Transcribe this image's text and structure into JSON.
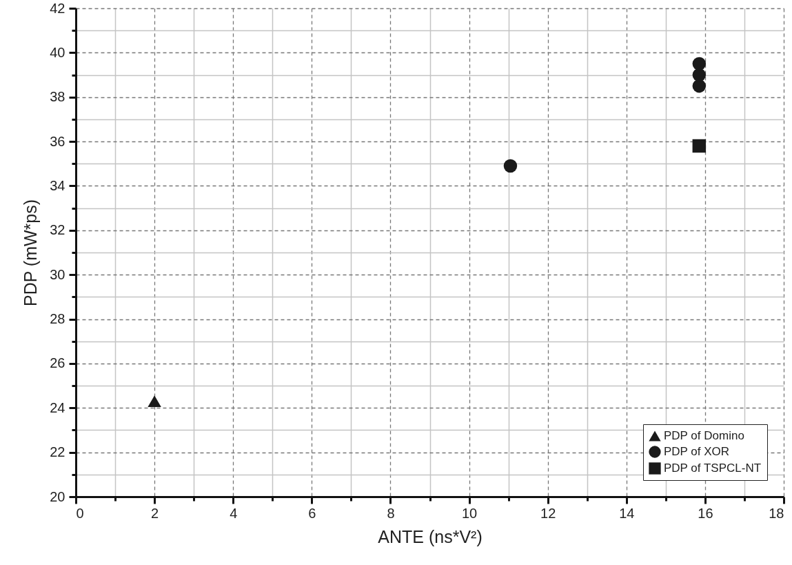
{
  "chart_data": {
    "type": "scatter",
    "xlabel": "ANTE (ns*V²)",
    "ylabel": "PDP (mW*ps)",
    "xlim": [
      0,
      18
    ],
    "ylim": [
      20,
      42
    ],
    "xticks": [
      0,
      {
        "value": 1,
        "label": null
      },
      2,
      {
        "value": 3,
        "label": null
      },
      4,
      {
        "value": 5,
        "label": null
      },
      6,
      {
        "value": 7,
        "label": null
      },
      8,
      {
        "value": 9,
        "label": null
      },
      10,
      {
        "value": 11,
        "label": null
      },
      12,
      {
        "value": 13,
        "label": null
      },
      14,
      {
        "value": 15,
        "label": null
      },
      16,
      {
        "value": 17,
        "label": null
      },
      18
    ],
    "yticks": [
      20,
      {
        "value": 21,
        "label": null
      },
      22,
      {
        "value": 23,
        "label": null
      },
      24,
      {
        "value": 25,
        "label": null
      },
      26,
      {
        "value": 27,
        "label": null
      },
      28,
      {
        "value": 29,
        "label": null
      },
      30,
      {
        "value": 31,
        "label": null
      },
      32,
      {
        "value": 33,
        "label": null
      },
      34,
      {
        "value": 35,
        "label": null
      },
      36,
      {
        "value": 37,
        "label": null
      },
      38,
      {
        "value": 39,
        "label": null
      },
      40,
      {
        "value": 41,
        "label": null
      },
      42
    ],
    "grid": true,
    "legend": "bottom right",
    "series": [
      {
        "name": "PDP of Domino",
        "color": "#1a1a1a",
        "marker": "triangle",
        "x": [
          2
        ],
        "values": [
          24.3
        ]
      },
      {
        "name": "PDP of XOR",
        "color": "#1a1a1a",
        "marker": "circle",
        "x": [
          11.05,
          15.85,
          15.85,
          15.85
        ],
        "values": [
          34.9,
          38.5,
          39.0,
          39.5
        ]
      },
      {
        "name": "PDP of TSPCL-NT",
        "color": "#1a1a1a",
        "marker": "square",
        "x": [
          15.85
        ],
        "values": [
          35.8
        ]
      }
    ]
  }
}
